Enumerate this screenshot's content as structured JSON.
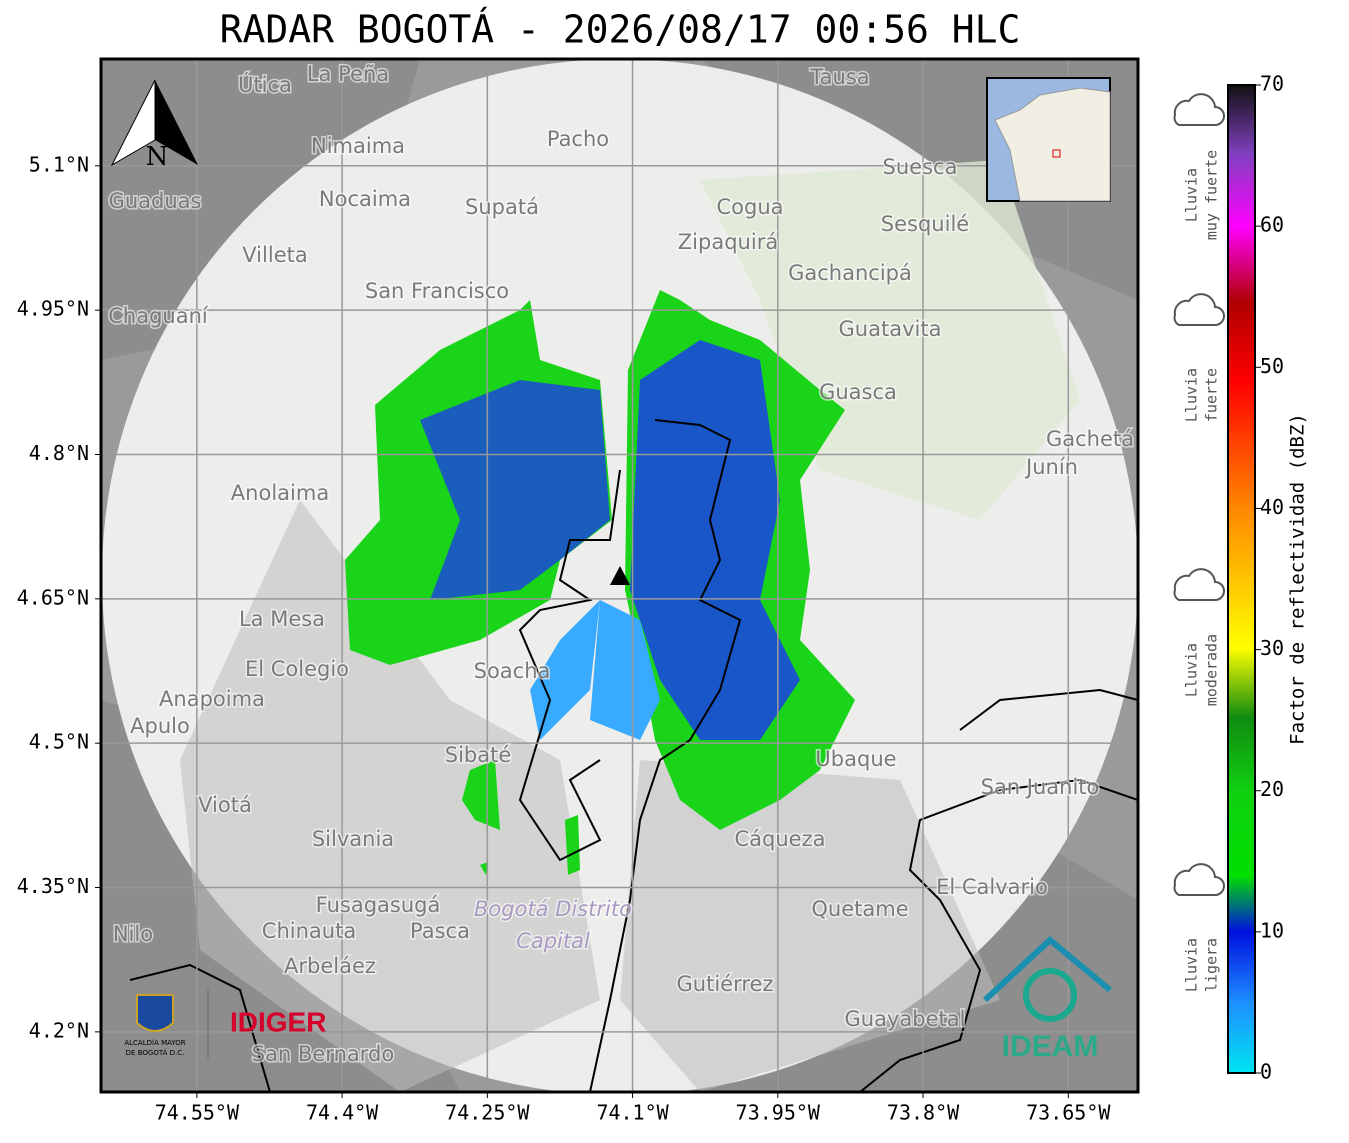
{
  "title": "RADAR BOGOTÁ - 2026/08/17 00:56 HLC",
  "map": {
    "xlim": [
      -74.649,
      -73.578
    ],
    "ylim": [
      4.1375,
      5.211
    ],
    "xticks": [
      {
        "value": -74.55,
        "label": "74.55°W"
      },
      {
        "value": -74.4,
        "label": "74.4°W"
      },
      {
        "value": -74.25,
        "label": "74.25°W"
      },
      {
        "value": -74.1,
        "label": "74.1°W"
      },
      {
        "value": -73.95,
        "label": "73.95°W"
      },
      {
        "value": -73.8,
        "label": "73.8°W"
      },
      {
        "value": -73.65,
        "label": "73.65°W"
      }
    ],
    "yticks": [
      {
        "value": 5.1,
        "label": "5.1°N"
      },
      {
        "value": 4.95,
        "label": "4.95°N"
      },
      {
        "value": 4.8,
        "label": "4.8°N"
      },
      {
        "value": 4.65,
        "label": "4.65°N"
      },
      {
        "value": 4.5,
        "label": "4.5°N"
      },
      {
        "value": 4.35,
        "label": "4.35°N"
      },
      {
        "value": 4.2,
        "label": "4.2°N"
      }
    ],
    "grid": true,
    "compass": "N",
    "places": [
      "La Peña",
      "Útica",
      "Tausa",
      "Pacho",
      "Nimaima",
      "Nocaima",
      "Supatá",
      "Guaduas",
      "Suesca",
      "Cogua",
      "Sesquilé",
      "Zipaquirá",
      "Villeta",
      "Gachancipá",
      "San Francisco",
      "Chaguaní",
      "Guatavita",
      "Guasca",
      "Gachetá",
      "Junín",
      "Anolaima",
      "La Mesa",
      "El Colegio",
      "Soacha",
      "Anapoima",
      "Apulo",
      "Sibaté",
      "Ubaque",
      "San Juanito",
      "Viotá",
      "Silvania",
      "Cáqueza",
      "El Calvario",
      "Fusagasugá",
      "Quetame",
      "Chinauta",
      "Pasca",
      "Nilo",
      "Arbeláez",
      "Gutiérrez",
      "Guayabetal",
      "San Bernardo"
    ],
    "district": [
      "Bogotá Distrito",
      "Capital"
    ],
    "logos": {
      "idiger": "IDIGER",
      "ideam": "IDEAM",
      "alcaldia": [
        "ALCALDÍA MAYOR",
        "DE BOGOTÁ D.C."
      ]
    }
  },
  "colorbar": {
    "label": "Factor de reflectividad (dBZ)",
    "lim": [
      0,
      70
    ],
    "ticks": [
      0,
      10,
      20,
      30,
      40,
      50,
      60,
      70
    ]
  },
  "rain_levels": [
    [
      "Lluvia",
      "muy fuerte"
    ],
    [
      "Lluvia",
      "fuerte"
    ],
    [
      "Lluvia",
      "moderada"
    ],
    [
      "Lluvia",
      "ligera"
    ]
  ]
}
